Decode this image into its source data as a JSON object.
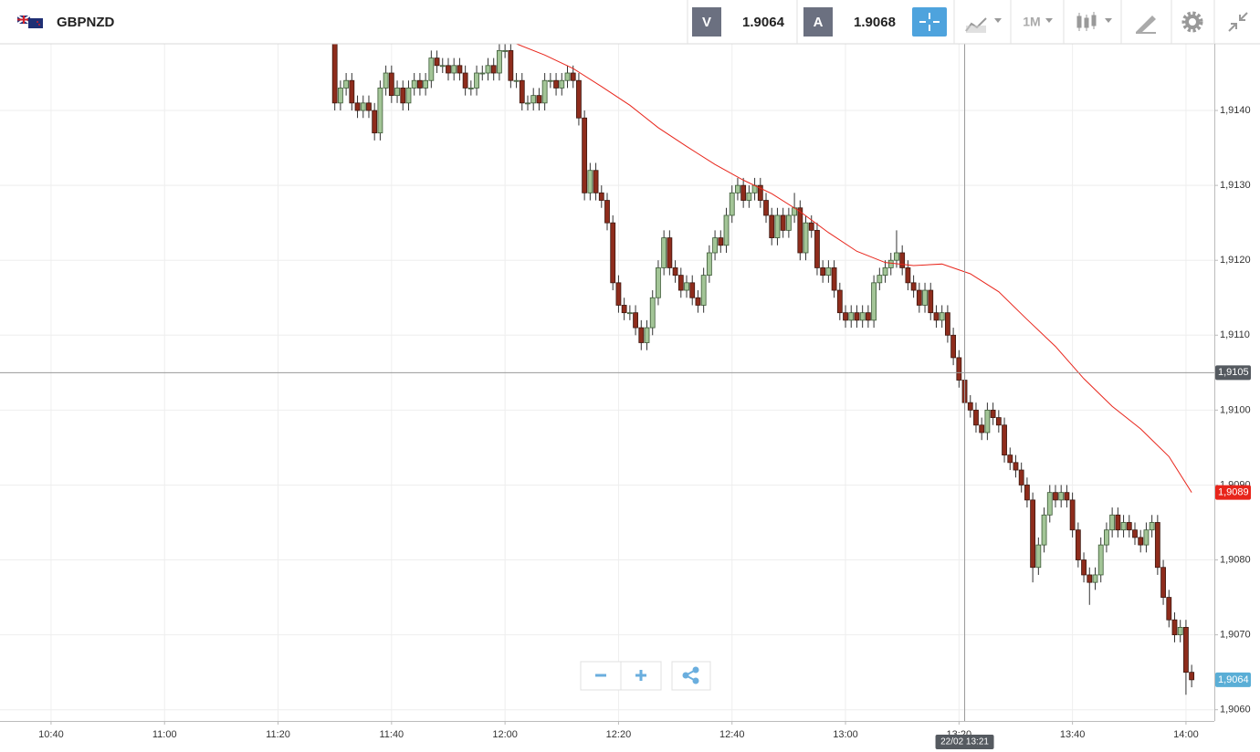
{
  "header": {
    "symbol": "GBPNZD",
    "bid_tag": "V",
    "bid": "1.9064",
    "ask_tag": "A",
    "ask": "1.9068",
    "timeframe": "1M"
  },
  "chart_data": {
    "type": "candlestick",
    "x": [
      "11:30",
      "11:31",
      "11:32",
      "11:33",
      "11:34",
      "11:35",
      "11:36",
      "11:37",
      "11:38",
      "11:39",
      "11:40",
      "11:41",
      "11:42",
      "11:43",
      "11:44",
      "11:45",
      "11:46",
      "11:47",
      "11:48",
      "11:49",
      "11:50",
      "11:51",
      "11:52",
      "11:53",
      "11:54",
      "11:55",
      "11:56",
      "11:57",
      "11:58",
      "11:59",
      "12:00",
      "12:01",
      "12:02",
      "12:03",
      "12:04",
      "12:05",
      "12:06",
      "12:07",
      "12:08",
      "12:09",
      "12:10",
      "12:11",
      "12:12",
      "12:13",
      "12:14",
      "12:15",
      "12:16",
      "12:17",
      "12:18",
      "12:19",
      "12:20",
      "12:21",
      "12:22",
      "12:23",
      "12:24",
      "12:25",
      "12:26",
      "12:27",
      "12:28",
      "12:29",
      "12:30",
      "12:31",
      "12:32",
      "12:33",
      "12:34",
      "12:35",
      "12:36",
      "12:37",
      "12:38",
      "12:39",
      "12:40",
      "12:41",
      "12:42",
      "12:43",
      "12:44",
      "12:45",
      "12:46",
      "12:47",
      "12:48",
      "12:49",
      "12:50",
      "12:51",
      "12:52",
      "12:53",
      "12:54",
      "12:55",
      "12:56",
      "12:57",
      "12:58",
      "12:59",
      "13:00",
      "13:01",
      "13:02",
      "13:03",
      "13:04",
      "13:05",
      "13:06",
      "13:07",
      "13:08",
      "13:09",
      "13:10",
      "13:11",
      "13:12",
      "13:13",
      "13:14",
      "13:15",
      "13:16",
      "13:17",
      "13:18",
      "13:19",
      "13:20",
      "13:21",
      "13:22",
      "13:23",
      "13:24",
      "13:25",
      "13:26",
      "13:27",
      "13:28",
      "13:29",
      "13:30",
      "13:31",
      "13:32",
      "13:33",
      "13:34",
      "13:35",
      "13:36",
      "13:37",
      "13:38",
      "13:39",
      "13:40",
      "13:41",
      "13:42",
      "13:43",
      "13:44",
      "13:45",
      "13:46",
      "13:47",
      "13:48",
      "13:49",
      "13:50",
      "13:51",
      "13:52",
      "13:53",
      "13:54",
      "13:55",
      "13:56",
      "13:57",
      "13:58",
      "13:59",
      "14:00",
      "14:01"
    ],
    "open": [
      1.9149,
      1.9141,
      1.9143,
      1.9144,
      1.9141,
      1.914,
      1.9141,
      1.914,
      1.9137,
      1.9143,
      1.9145,
      1.9142,
      1.9143,
      1.9141,
      1.9143,
      1.9144,
      1.9143,
      1.9144,
      1.9147,
      1.9146,
      1.9146,
      1.9145,
      1.9146,
      1.9145,
      1.9143,
      1.9143,
      1.9145,
      1.9145,
      1.9146,
      1.9145,
      1.9148,
      1.9148,
      1.9144,
      1.9144,
      1.9141,
      1.9141,
      1.9142,
      1.9141,
      1.9144,
      1.9144,
      1.9143,
      1.9144,
      1.9145,
      1.9144,
      1.9139,
      1.9129,
      1.9132,
      1.9129,
      1.9128,
      1.9125,
      1.9117,
      1.9114,
      1.9113,
      1.9113,
      1.9111,
      1.9109,
      1.9111,
      1.9115,
      1.9119,
      1.9123,
      1.9119,
      1.9118,
      1.9116,
      1.9117,
      1.9115,
      1.9114,
      1.9118,
      1.9121,
      1.9123,
      1.9122,
      1.9126,
      1.9129,
      1.913,
      1.9128,
      1.9129,
      1.913,
      1.9128,
      1.9126,
      1.9123,
      1.9126,
      1.9124,
      1.9126,
      1.9127,
      1.9121,
      1.9125,
      1.9124,
      1.9119,
      1.9118,
      1.9119,
      1.9116,
      1.9113,
      1.9112,
      1.9113,
      1.9112,
      1.9113,
      1.9112,
      1.9117,
      1.9118,
      1.9119,
      1.912,
      1.9121,
      1.9119,
      1.9117,
      1.9116,
      1.9114,
      1.9116,
      1.9113,
      1.9112,
      1.9113,
      1.911,
      1.9107,
      1.9104,
      1.9101,
      1.91,
      1.9098,
      1.9097,
      1.91,
      1.9099,
      1.9098,
      1.9094,
      1.9093,
      1.9092,
      1.909,
      1.9088,
      1.9079,
      1.9082,
      1.9086,
      1.9089,
      1.9088,
      1.9089,
      1.9088,
      1.9084,
      1.908,
      1.9078,
      1.9077,
      1.9078,
      1.9082,
      1.9084,
      1.9086,
      1.9084,
      1.9085,
      1.9084,
      1.9083,
      1.9082,
      1.9084,
      1.9085,
      1.9079,
      1.9075,
      1.9072,
      1.907,
      1.9071,
      1.9065
    ],
    "high": [
      1.9149,
      1.9144,
      1.9145,
      1.9145,
      1.9142,
      1.9142,
      1.9142,
      1.9141,
      1.9144,
      1.9146,
      1.9146,
      1.9144,
      1.9144,
      1.9144,
      1.9145,
      1.9145,
      1.9145,
      1.9148,
      1.9148,
      1.9147,
      1.9147,
      1.9147,
      1.9147,
      1.9146,
      1.9144,
      1.9146,
      1.9146,
      1.9147,
      1.9147,
      1.9149,
      1.9149,
      1.9149,
      1.9145,
      1.9145,
      1.9142,
      1.9143,
      1.9143,
      1.9145,
      1.9145,
      1.9145,
      1.9145,
      1.9146,
      1.9146,
      1.9145,
      1.914,
      1.9133,
      1.9133,
      1.913,
      1.9129,
      1.9126,
      1.9118,
      1.9115,
      1.9114,
      1.9114,
      1.9112,
      1.9112,
      1.9116,
      1.912,
      1.9124,
      1.9124,
      1.912,
      1.9119,
      1.9118,
      1.9118,
      1.9116,
      1.9119,
      1.9122,
      1.9124,
      1.9124,
      1.9127,
      1.913,
      1.9131,
      1.9131,
      1.913,
      1.9131,
      1.9131,
      1.9129,
      1.9127,
      1.9127,
      1.9127,
      1.9127,
      1.9129,
      1.9128,
      1.9126,
      1.9126,
      1.9125,
      1.912,
      1.912,
      1.912,
      1.9117,
      1.9114,
      1.9114,
      1.9114,
      1.9114,
      1.9114,
      1.9118,
      1.9119,
      1.912,
      1.9121,
      1.9124,
      1.9122,
      1.912,
      1.9118,
      1.9117,
      1.9117,
      1.9117,
      1.9114,
      1.9114,
      1.9114,
      1.9111,
      1.9108,
      1.9105,
      1.9102,
      1.9101,
      1.9099,
      1.9101,
      1.9101,
      1.91,
      1.9099,
      1.9095,
      1.9094,
      1.9093,
      1.9091,
      1.9089,
      1.9083,
      1.9087,
      1.909,
      1.909,
      1.909,
      1.909,
      1.9089,
      1.9085,
      1.9081,
      1.9079,
      1.9079,
      1.9083,
      1.9085,
      1.9087,
      1.9087,
      1.9086,
      1.9086,
      1.9085,
      1.9084,
      1.9085,
      1.9086,
      1.9086,
      1.908,
      1.9076,
      1.9073,
      1.9072,
      1.9072,
      1.9066
    ],
    "low": [
      1.914,
      1.914,
      1.9142,
      1.914,
      1.9139,
      1.9139,
      1.9139,
      1.9136,
      1.9136,
      1.9142,
      1.9141,
      1.9141,
      1.914,
      1.914,
      1.9142,
      1.9142,
      1.9142,
      1.9143,
      1.9145,
      1.9145,
      1.9144,
      1.9144,
      1.9144,
      1.9142,
      1.9142,
      1.9142,
      1.9144,
      1.9144,
      1.9144,
      1.9144,
      1.9147,
      1.9143,
      1.9143,
      1.914,
      1.914,
      1.914,
      1.914,
      1.914,
      1.9143,
      1.9142,
      1.9142,
      1.9143,
      1.9143,
      1.9138,
      1.9128,
      1.9128,
      1.9128,
      1.9127,
      1.9124,
      1.9116,
      1.9113,
      1.9112,
      1.9112,
      1.911,
      1.9108,
      1.9108,
      1.911,
      1.9114,
      1.9118,
      1.9118,
      1.9117,
      1.9115,
      1.9115,
      1.9114,
      1.9113,
      1.9113,
      1.9117,
      1.912,
      1.9121,
      1.9121,
      1.9125,
      1.9128,
      1.9127,
      1.9127,
      1.9128,
      1.9127,
      1.9125,
      1.9122,
      1.9122,
      1.9123,
      1.9123,
      1.9125,
      1.912,
      1.912,
      1.9123,
      1.9118,
      1.9117,
      1.9117,
      1.9115,
      1.9112,
      1.9111,
      1.9111,
      1.9111,
      1.9111,
      1.9111,
      1.9111,
      1.9116,
      1.9117,
      1.9118,
      1.9119,
      1.9118,
      1.9116,
      1.9115,
      1.9113,
      1.9113,
      1.9112,
      1.9111,
      1.9111,
      1.9109,
      1.9106,
      1.9103,
      1.91,
      1.9099,
      1.9097,
      1.9096,
      1.9096,
      1.9098,
      1.9097,
      1.9093,
      1.9092,
      1.9091,
      1.9089,
      1.9087,
      1.9077,
      1.9078,
      1.9081,
      1.9085,
      1.9087,
      1.9087,
      1.9087,
      1.9083,
      1.9079,
      1.9077,
      1.9074,
      1.9076,
      1.9077,
      1.9081,
      1.9083,
      1.9083,
      1.9083,
      1.9083,
      1.9082,
      1.9081,
      1.9081,
      1.9083,
      1.9078,
      1.9074,
      1.9071,
      1.9069,
      1.9069,
      1.9062,
      1.9063
    ],
    "close": [
      1.9141,
      1.9143,
      1.9144,
      1.9141,
      1.914,
      1.9141,
      1.914,
      1.9137,
      1.9143,
      1.9145,
      1.9142,
      1.9143,
      1.9141,
      1.9143,
      1.9144,
      1.9143,
      1.9144,
      1.9147,
      1.9146,
      1.9146,
      1.9145,
      1.9146,
      1.9145,
      1.9143,
      1.9143,
      1.9145,
      1.9145,
      1.9146,
      1.9145,
      1.9148,
      1.9148,
      1.9144,
      1.9144,
      1.9141,
      1.9141,
      1.9142,
      1.9141,
      1.9144,
      1.9144,
      1.9143,
      1.9144,
      1.9145,
      1.9144,
      1.9139,
      1.9129,
      1.9132,
      1.9129,
      1.9128,
      1.9125,
      1.9117,
      1.9114,
      1.9113,
      1.9113,
      1.9111,
      1.9109,
      1.9111,
      1.9115,
      1.9119,
      1.9123,
      1.9119,
      1.9118,
      1.9116,
      1.9117,
      1.9115,
      1.9114,
      1.9118,
      1.9121,
      1.9123,
      1.9122,
      1.9126,
      1.9129,
      1.913,
      1.9128,
      1.9129,
      1.913,
      1.9128,
      1.9126,
      1.9123,
      1.9126,
      1.9124,
      1.9126,
      1.9127,
      1.9121,
      1.9125,
      1.9124,
      1.9119,
      1.9118,
      1.9119,
      1.9116,
      1.9113,
      1.9112,
      1.9113,
      1.9112,
      1.9113,
      1.9112,
      1.9117,
      1.9118,
      1.9119,
      1.912,
      1.9121,
      1.9119,
      1.9117,
      1.9116,
      1.9114,
      1.9116,
      1.9113,
      1.9112,
      1.9113,
      1.911,
      1.9107,
      1.9104,
      1.9101,
      1.91,
      1.9098,
      1.9097,
      1.91,
      1.9099,
      1.9098,
      1.9094,
      1.9093,
      1.9092,
      1.909,
      1.9088,
      1.9079,
      1.9082,
      1.9086,
      1.9089,
      1.9088,
      1.9089,
      1.9088,
      1.9084,
      1.908,
      1.9078,
      1.9077,
      1.9078,
      1.9082,
      1.9084,
      1.9086,
      1.9084,
      1.9085,
      1.9084,
      1.9083,
      1.9082,
      1.9084,
      1.9085,
      1.9079,
      1.9075,
      1.9072,
      1.907,
      1.9071,
      1.9065,
      1.9064
    ],
    "up_color": "#a3c597",
    "down_color": "#8e2c1c",
    "moving_average": {
      "color": "#e8251b",
      "x": [
        "12:02",
        "12:07",
        "12:12",
        "12:17",
        "12:22",
        "12:27",
        "12:32",
        "12:37",
        "12:42",
        "12:47",
        "12:52",
        "12:57",
        "13:02",
        "13:07",
        "13:12",
        "13:17",
        "13:22",
        "13:27",
        "13:32",
        "13:37",
        "13:42",
        "13:47",
        "13:52",
        "13:57",
        "14:01"
      ],
      "values": [
        1.91489,
        1.91474,
        1.91456,
        1.91432,
        1.91407,
        1.91377,
        1.91352,
        1.91328,
        1.91307,
        1.91289,
        1.91265,
        1.91237,
        1.91212,
        1.91197,
        1.91193,
        1.91195,
        1.91182,
        1.91158,
        1.91121,
        1.91085,
        1.91042,
        1.91005,
        1.90975,
        1.90938,
        1.9089
      ],
      "label": "1,9089"
    },
    "last_price": {
      "value": 1.9064,
      "label": "1,9064",
      "color": "#5aaed6"
    },
    "crosshair": {
      "value": 1.9105,
      "label": "1,9105",
      "time": "13:21",
      "time_label": "22/02 13:21"
    },
    "xlim": [
      "10:31",
      "14:05"
    ],
    "xticks": [
      "10:40",
      "11:00",
      "11:20",
      "11:40",
      "12:00",
      "12:20",
      "12:40",
      "13:00",
      "13:20",
      "13:40",
      "14:00"
    ],
    "ylim": [
      1.90585,
      1.91489
    ],
    "yticks": [
      {
        "value": 1.906,
        "label": "1,9060"
      },
      {
        "value": 1.907,
        "label": "1,9070"
      },
      {
        "value": 1.908,
        "label": "1,9080"
      },
      {
        "value": 1.909,
        "label": "1,9090"
      },
      {
        "value": 1.91,
        "label": "1,9100"
      },
      {
        "value": 1.911,
        "label": "1,9110"
      },
      {
        "value": 1.912,
        "label": "1,9120"
      },
      {
        "value": 1.913,
        "label": "1,9130"
      },
      {
        "value": 1.914,
        "label": "1,9140"
      }
    ],
    "grid": true
  }
}
